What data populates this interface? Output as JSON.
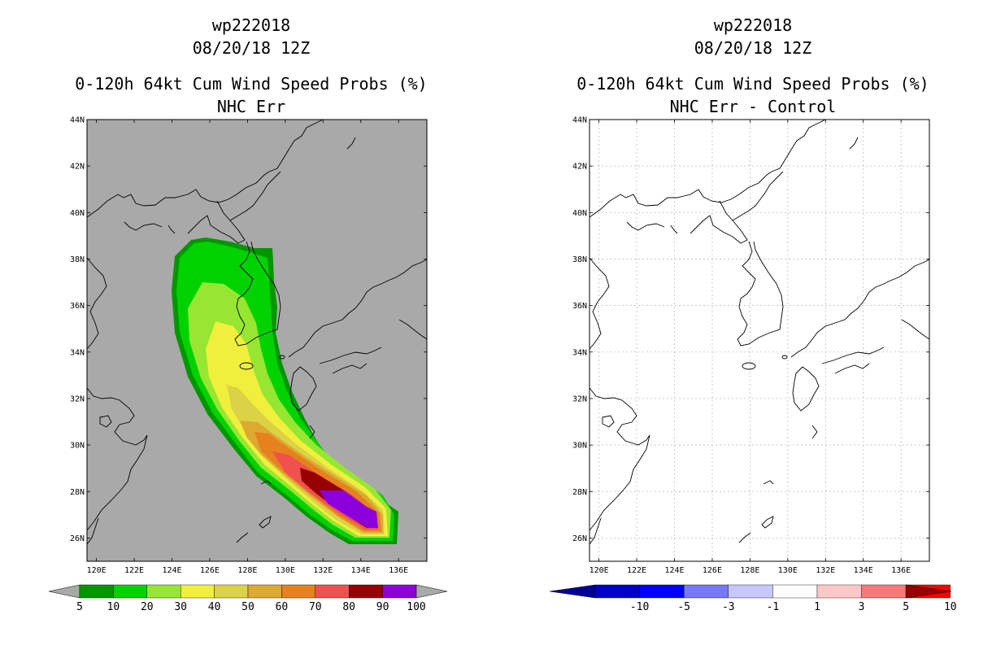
{
  "panels": [
    {
      "title_line1": "wp222018",
      "title_line2": "08/20/18 12Z",
      "title_line3": "0-120h 64kt Cum Wind Speed Probs (%)",
      "title_line4": "NHC Err",
      "background_color": "#a9a9a9",
      "colorbar": {
        "labels": [
          "5",
          "10",
          "20",
          "30",
          "40",
          "50",
          "60",
          "70",
          "80",
          "90",
          "100"
        ],
        "colors": [
          "#009600",
          "#00d200",
          "#96e632",
          "#f0f03c",
          "#dcd246",
          "#dcaa32",
          "#e6821e",
          "#f05050",
          "#960000",
          "#8c00dc"
        ],
        "end_color": "#a9a9a9"
      }
    },
    {
      "title_line1": "wp222018",
      "title_line2": "08/20/18 12Z",
      "title_line3": "0-120h 64kt Cum Wind Speed Probs (%)",
      "title_line4": "NHC Err - Control",
      "background_color": "#ffffff",
      "colorbar": {
        "labels": [
          "-10",
          "-5",
          "-3",
          "-1",
          "1",
          "3",
          "5",
          "10"
        ],
        "colors": [
          "#0000c8",
          "#0000ff",
          "#7878ff",
          "#c8c8ff",
          "#ffffff",
          "#ffc8c8",
          "#ff7878",
          "#ff0000"
        ],
        "left_end_color": "#000096",
        "right_end_color": "#960000"
      }
    }
  ],
  "axes": {
    "lon_labels": [
      "120E",
      "122E",
      "124E",
      "126E",
      "128E",
      "130E",
      "132E",
      "134E",
      "136E"
    ],
    "lat_labels": [
      "26N",
      "28N",
      "30N",
      "32N",
      "34N",
      "36N",
      "38N",
      "40N",
      "42N",
      "44N"
    ],
    "lon_range": [
      119.5,
      137.5
    ],
    "lat_range": [
      25,
      44
    ]
  },
  "legend_icons": [
    "colorbar-left-arrow",
    "colorbar-right-arrow"
  ]
}
